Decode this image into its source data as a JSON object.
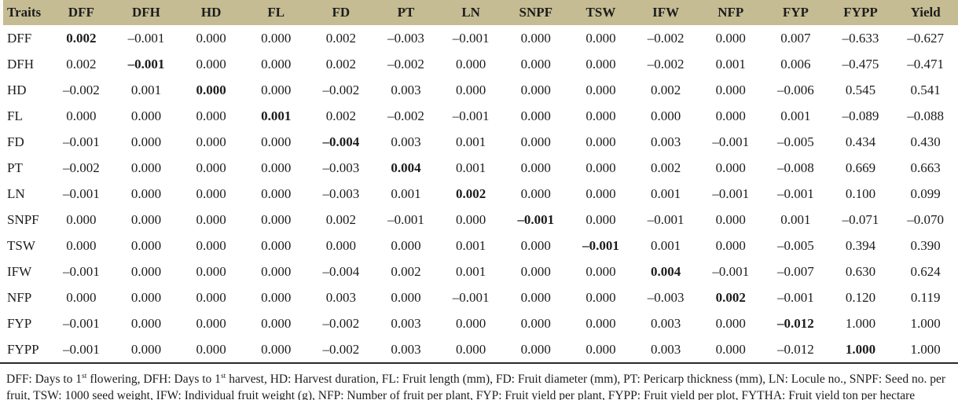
{
  "colors": {
    "header_bg": "#c5bc93",
    "text": "#1c1c1c",
    "rule": "#2a2a2a"
  },
  "table": {
    "columns": [
      "Traits",
      "DFF",
      "DFH",
      "HD",
      "FL",
      "FD",
      "PT",
      "LN",
      "SNPF",
      "TSW",
      "IFW",
      "NFP",
      "FYP",
      "FYPP",
      "Yield"
    ],
    "rows": [
      {
        "trait": "DFF",
        "values": [
          "0.002",
          "–0.001",
          "0.000",
          "0.000",
          "0.002",
          "–0.003",
          "–0.001",
          "0.000",
          "0.000",
          "–0.002",
          "0.000",
          "0.007",
          "–0.633",
          "–0.627"
        ]
      },
      {
        "trait": "DFH",
        "values": [
          "0.002",
          "–0.001",
          "0.000",
          "0.000",
          "0.002",
          "–0.002",
          "0.000",
          "0.000",
          "0.000",
          "–0.002",
          "0.001",
          "0.006",
          "–0.475",
          "–0.471"
        ]
      },
      {
        "trait": "HD",
        "values": [
          "–0.002",
          "0.001",
          "0.000",
          "0.000",
          "–0.002",
          "0.003",
          "0.000",
          "0.000",
          "0.000",
          "0.002",
          "0.000",
          "–0.006",
          "0.545",
          "0.541"
        ]
      },
      {
        "trait": "FL",
        "values": [
          "0.000",
          "0.000",
          "0.000",
          "0.001",
          "0.002",
          "–0.002",
          "–0.001",
          "0.000",
          "0.000",
          "0.000",
          "0.000",
          "0.001",
          "–0.089",
          "–0.088"
        ]
      },
      {
        "trait": "FD",
        "values": [
          "–0.001",
          "0.000",
          "0.000",
          "0.000",
          "–0.004",
          "0.003",
          "0.001",
          "0.000",
          "0.000",
          "0.003",
          "–0.001",
          "–0.005",
          "0.434",
          "0.430"
        ]
      },
      {
        "trait": "PT",
        "values": [
          "–0.002",
          "0.000",
          "0.000",
          "0.000",
          "–0.003",
          "0.004",
          "0.001",
          "0.000",
          "0.000",
          "0.002",
          "0.000",
          "–0.008",
          "0.669",
          "0.663"
        ]
      },
      {
        "trait": "LN",
        "values": [
          "–0.001",
          "0.000",
          "0.000",
          "0.000",
          "–0.003",
          "0.001",
          "0.002",
          "0.000",
          "0.000",
          "0.001",
          "–0.001",
          "–0.001",
          "0.100",
          "0.099"
        ]
      },
      {
        "trait": "SNPF",
        "values": [
          "0.000",
          "0.000",
          "0.000",
          "0.000",
          "0.002",
          "–0.001",
          "0.000",
          "–0.001",
          "0.000",
          "–0.001",
          "0.000",
          "0.001",
          "–0.071",
          "–0.070"
        ]
      },
      {
        "trait": "TSW",
        "values": [
          "0.000",
          "0.000",
          "0.000",
          "0.000",
          "0.000",
          "0.000",
          "0.001",
          "0.000",
          "–0.001",
          "0.001",
          "0.000",
          "–0.005",
          "0.394",
          "0.390"
        ]
      },
      {
        "trait": "IFW",
        "values": [
          "–0.001",
          "0.000",
          "0.000",
          "0.000",
          "–0.004",
          "0.002",
          "0.001",
          "0.000",
          "0.000",
          "0.004",
          "–0.001",
          "–0.007",
          "0.630",
          "0.624"
        ]
      },
      {
        "trait": "NFP",
        "values": [
          "0.000",
          "0.000",
          "0.000",
          "0.000",
          "0.003",
          "0.000",
          "–0.001",
          "0.000",
          "0.000",
          "–0.003",
          "0.002",
          "–0.001",
          "0.120",
          "0.119"
        ]
      },
      {
        "trait": "FYP",
        "values": [
          "–0.001",
          "0.000",
          "0.000",
          "0.000",
          "–0.002",
          "0.003",
          "0.000",
          "0.000",
          "0.000",
          "0.003",
          "0.000",
          "–0.012",
          "1.000",
          "1.000"
        ]
      },
      {
        "trait": "FYPP",
        "values": [
          "–0.001",
          "0.000",
          "0.000",
          "0.000",
          "–0.002",
          "0.003",
          "0.000",
          "0.000",
          "0.000",
          "0.003",
          "0.000",
          "–0.012",
          "1.000",
          "1.000"
        ]
      }
    ]
  },
  "footnote": {
    "seg1": "DFF: Days to 1",
    "sup1": "st",
    "seg2": " flowering, DFH: Days to 1",
    "sup2": "st",
    "seg3": " harvest, HD: Harvest duration, FL: Fruit length (mm), FD: Fruit diameter (mm), PT: Pericarp thickness (mm), LN: Locule no., SNPF: Seed no. per fruit, TSW: 1000 seed weight, IFW: Individual fruit weight (g), NFP: Number of fruit per plant, FYP: Fruit yield per plant, FYPP: Fruit yield per plot, FYTHA: Fruit yield ton per hectare"
  }
}
